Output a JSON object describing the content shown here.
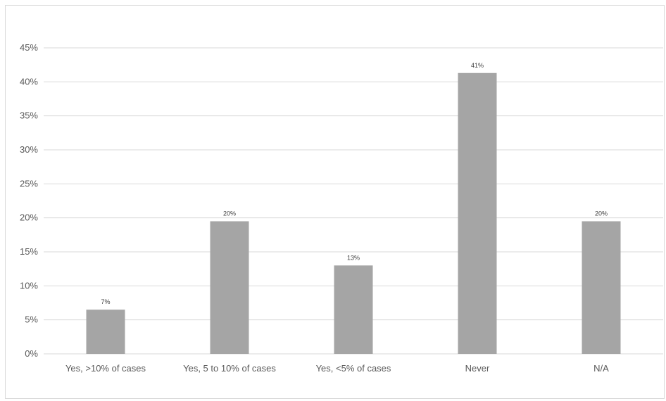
{
  "chart_data": {
    "type": "bar",
    "title": "",
    "xlabel": "",
    "ylabel": "",
    "categories": [
      "Yes, >10% of cases",
      "Yes, 5 to 10% of cases",
      "Yes, <5% of cases",
      "Never",
      "N/A"
    ],
    "values": [
      6.5,
      19.5,
      13.0,
      41.3,
      19.5
    ],
    "data_labels": [
      "7%",
      "20%",
      "13%",
      "41%",
      "20%"
    ],
    "ylim": [
      0,
      45
    ],
    "yticks": [
      0,
      5,
      10,
      15,
      20,
      25,
      30,
      35,
      40,
      45
    ],
    "ytick_labels": [
      "0%",
      "5%",
      "10%",
      "15%",
      "20%",
      "25%",
      "30%",
      "35%",
      "40%",
      "45%"
    ],
    "grid": true,
    "legend": "none",
    "bar_color": "#a5a5a5",
    "grid_color": "#d9d9d9"
  }
}
